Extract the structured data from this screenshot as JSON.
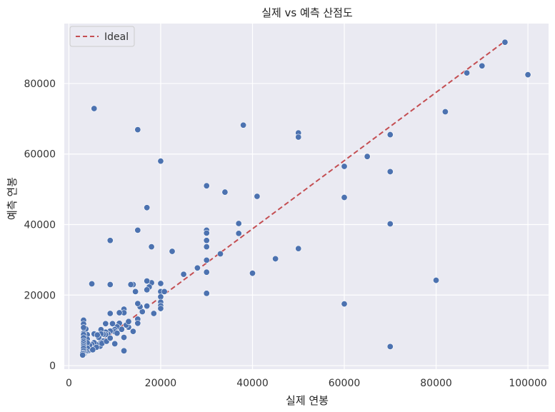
{
  "chart_data": {
    "type": "scatter",
    "title": "실제 vs 예측 산점도",
    "xlabel": "실제 연봉",
    "ylabel": "예측 연봉",
    "xlim": [
      -1000,
      104500
    ],
    "ylim": [
      -1000,
      97000
    ],
    "xticks": [
      0,
      20000,
      40000,
      60000,
      80000,
      100000
    ],
    "yticks": [
      0,
      20000,
      40000,
      60000,
      80000
    ],
    "grid": true,
    "legend": {
      "position": "top-left",
      "entries": [
        "Ideal"
      ]
    },
    "colors": {
      "background": "#eaeaf2",
      "grid": "#ffffff",
      "points": "#4c72b0",
      "ideal_line": "#c44e52"
    },
    "ideal_line": {
      "x": [
        3000,
        95000
      ],
      "y": [
        3000,
        92000
      ]
    },
    "points": [
      [
        95000,
        91700
      ],
      [
        100000,
        82500
      ],
      [
        90000,
        85000
      ],
      [
        86700,
        83000
      ],
      [
        82000,
        72000
      ],
      [
        80000,
        24200
      ],
      [
        70000,
        65500
      ],
      [
        70000,
        55000
      ],
      [
        70000,
        40200
      ],
      [
        70000,
        5400
      ],
      [
        65000,
        59300
      ],
      [
        60000,
        56500
      ],
      [
        60000,
        47700
      ],
      [
        60000,
        17500
      ],
      [
        50000,
        66000
      ],
      [
        50000,
        64800
      ],
      [
        50000,
        33200
      ],
      [
        45000,
        30300
      ],
      [
        41000,
        48000
      ],
      [
        40000,
        26200
      ],
      [
        38000,
        68200
      ],
      [
        37000,
        40300
      ],
      [
        37000,
        37500
      ],
      [
        34000,
        49200
      ],
      [
        33000,
        31700
      ],
      [
        30000,
        51000
      ],
      [
        30000,
        38400
      ],
      [
        30000,
        37600
      ],
      [
        30000,
        35500
      ],
      [
        30000,
        33700
      ],
      [
        30000,
        29900
      ],
      [
        30000,
        26500
      ],
      [
        30000,
        20500
      ],
      [
        28000,
        27700
      ],
      [
        25000,
        25900
      ],
      [
        22500,
        32400
      ],
      [
        20000,
        58000
      ],
      [
        20000,
        23300
      ],
      [
        20000,
        21000
      ],
      [
        20000,
        19500
      ],
      [
        20000,
        18000
      ],
      [
        20000,
        17000
      ],
      [
        20000,
        16200
      ],
      [
        20800,
        21000
      ],
      [
        18500,
        14800
      ],
      [
        18000,
        33700
      ],
      [
        18000,
        23500
      ],
      [
        17500,
        22300
      ],
      [
        17000,
        44800
      ],
      [
        17000,
        24000
      ],
      [
        17000,
        21500
      ],
      [
        17000,
        16900
      ],
      [
        16000,
        15300
      ],
      [
        15500,
        16700
      ],
      [
        15000,
        66900
      ],
      [
        15000,
        38400
      ],
      [
        15000,
        17600
      ],
      [
        15000,
        13200
      ],
      [
        15000,
        12000
      ],
      [
        14500,
        21000
      ],
      [
        14000,
        23000
      ],
      [
        14000,
        9700
      ],
      [
        13500,
        23000
      ],
      [
        13000,
        10900
      ],
      [
        12000,
        16000
      ],
      [
        12000,
        15000
      ],
      [
        12000,
        8000
      ],
      [
        12000,
        4200
      ],
      [
        11000,
        15000
      ],
      [
        11000,
        12000
      ],
      [
        10500,
        11000
      ],
      [
        10000,
        10200
      ],
      [
        10000,
        9600
      ],
      [
        10000,
        6200
      ],
      [
        9500,
        11900
      ],
      [
        9000,
        35500
      ],
      [
        9000,
        23000
      ],
      [
        9000,
        14800
      ],
      [
        9000,
        9800
      ],
      [
        8500,
        9000
      ],
      [
        8000,
        11900
      ],
      [
        8000,
        9500
      ],
      [
        8000,
        8800
      ],
      [
        7500,
        8900
      ],
      [
        7500,
        7000
      ],
      [
        7000,
        10200
      ],
      [
        7000,
        9000
      ],
      [
        7000,
        6500
      ],
      [
        6800,
        5500
      ],
      [
        6500,
        8000
      ],
      [
        6000,
        6000
      ],
      [
        5500,
        72900
      ],
      [
        5500,
        9000
      ],
      [
        5500,
        6500
      ],
      [
        5000,
        23200
      ],
      [
        5000,
        6000
      ],
      [
        5000,
        5000
      ],
      [
        4800,
        4800
      ],
      [
        4500,
        5800
      ],
      [
        4200,
        4200
      ],
      [
        4000,
        8800
      ],
      [
        4000,
        7500
      ],
      [
        4000,
        6500
      ],
      [
        4000,
        5000
      ],
      [
        3800,
        4000
      ],
      [
        3700,
        10400
      ],
      [
        3500,
        3700
      ],
      [
        3300,
        3200
      ],
      [
        3200,
        12900
      ],
      [
        3200,
        11800
      ],
      [
        3200,
        10800
      ],
      [
        3200,
        9200
      ],
      [
        3200,
        8800
      ],
      [
        3200,
        7900
      ],
      [
        3200,
        7000
      ],
      [
        3200,
        6500
      ],
      [
        3200,
        5900
      ],
      [
        3200,
        5400
      ],
      [
        3200,
        4900
      ],
      [
        3200,
        4200
      ],
      [
        3200,
        3600
      ],
      [
        3100,
        3100
      ],
      [
        3000,
        3400
      ],
      [
        3000,
        3000
      ],
      [
        6200,
        8700
      ],
      [
        7200,
        6300
      ],
      [
        8200,
        6900
      ],
      [
        9000,
        7800
      ],
      [
        10500,
        9200
      ],
      [
        11500,
        10300
      ],
      [
        12500,
        11500
      ],
      [
        13000,
        12500
      ],
      [
        6000,
        5200
      ],
      [
        5200,
        4500
      ]
    ]
  }
}
